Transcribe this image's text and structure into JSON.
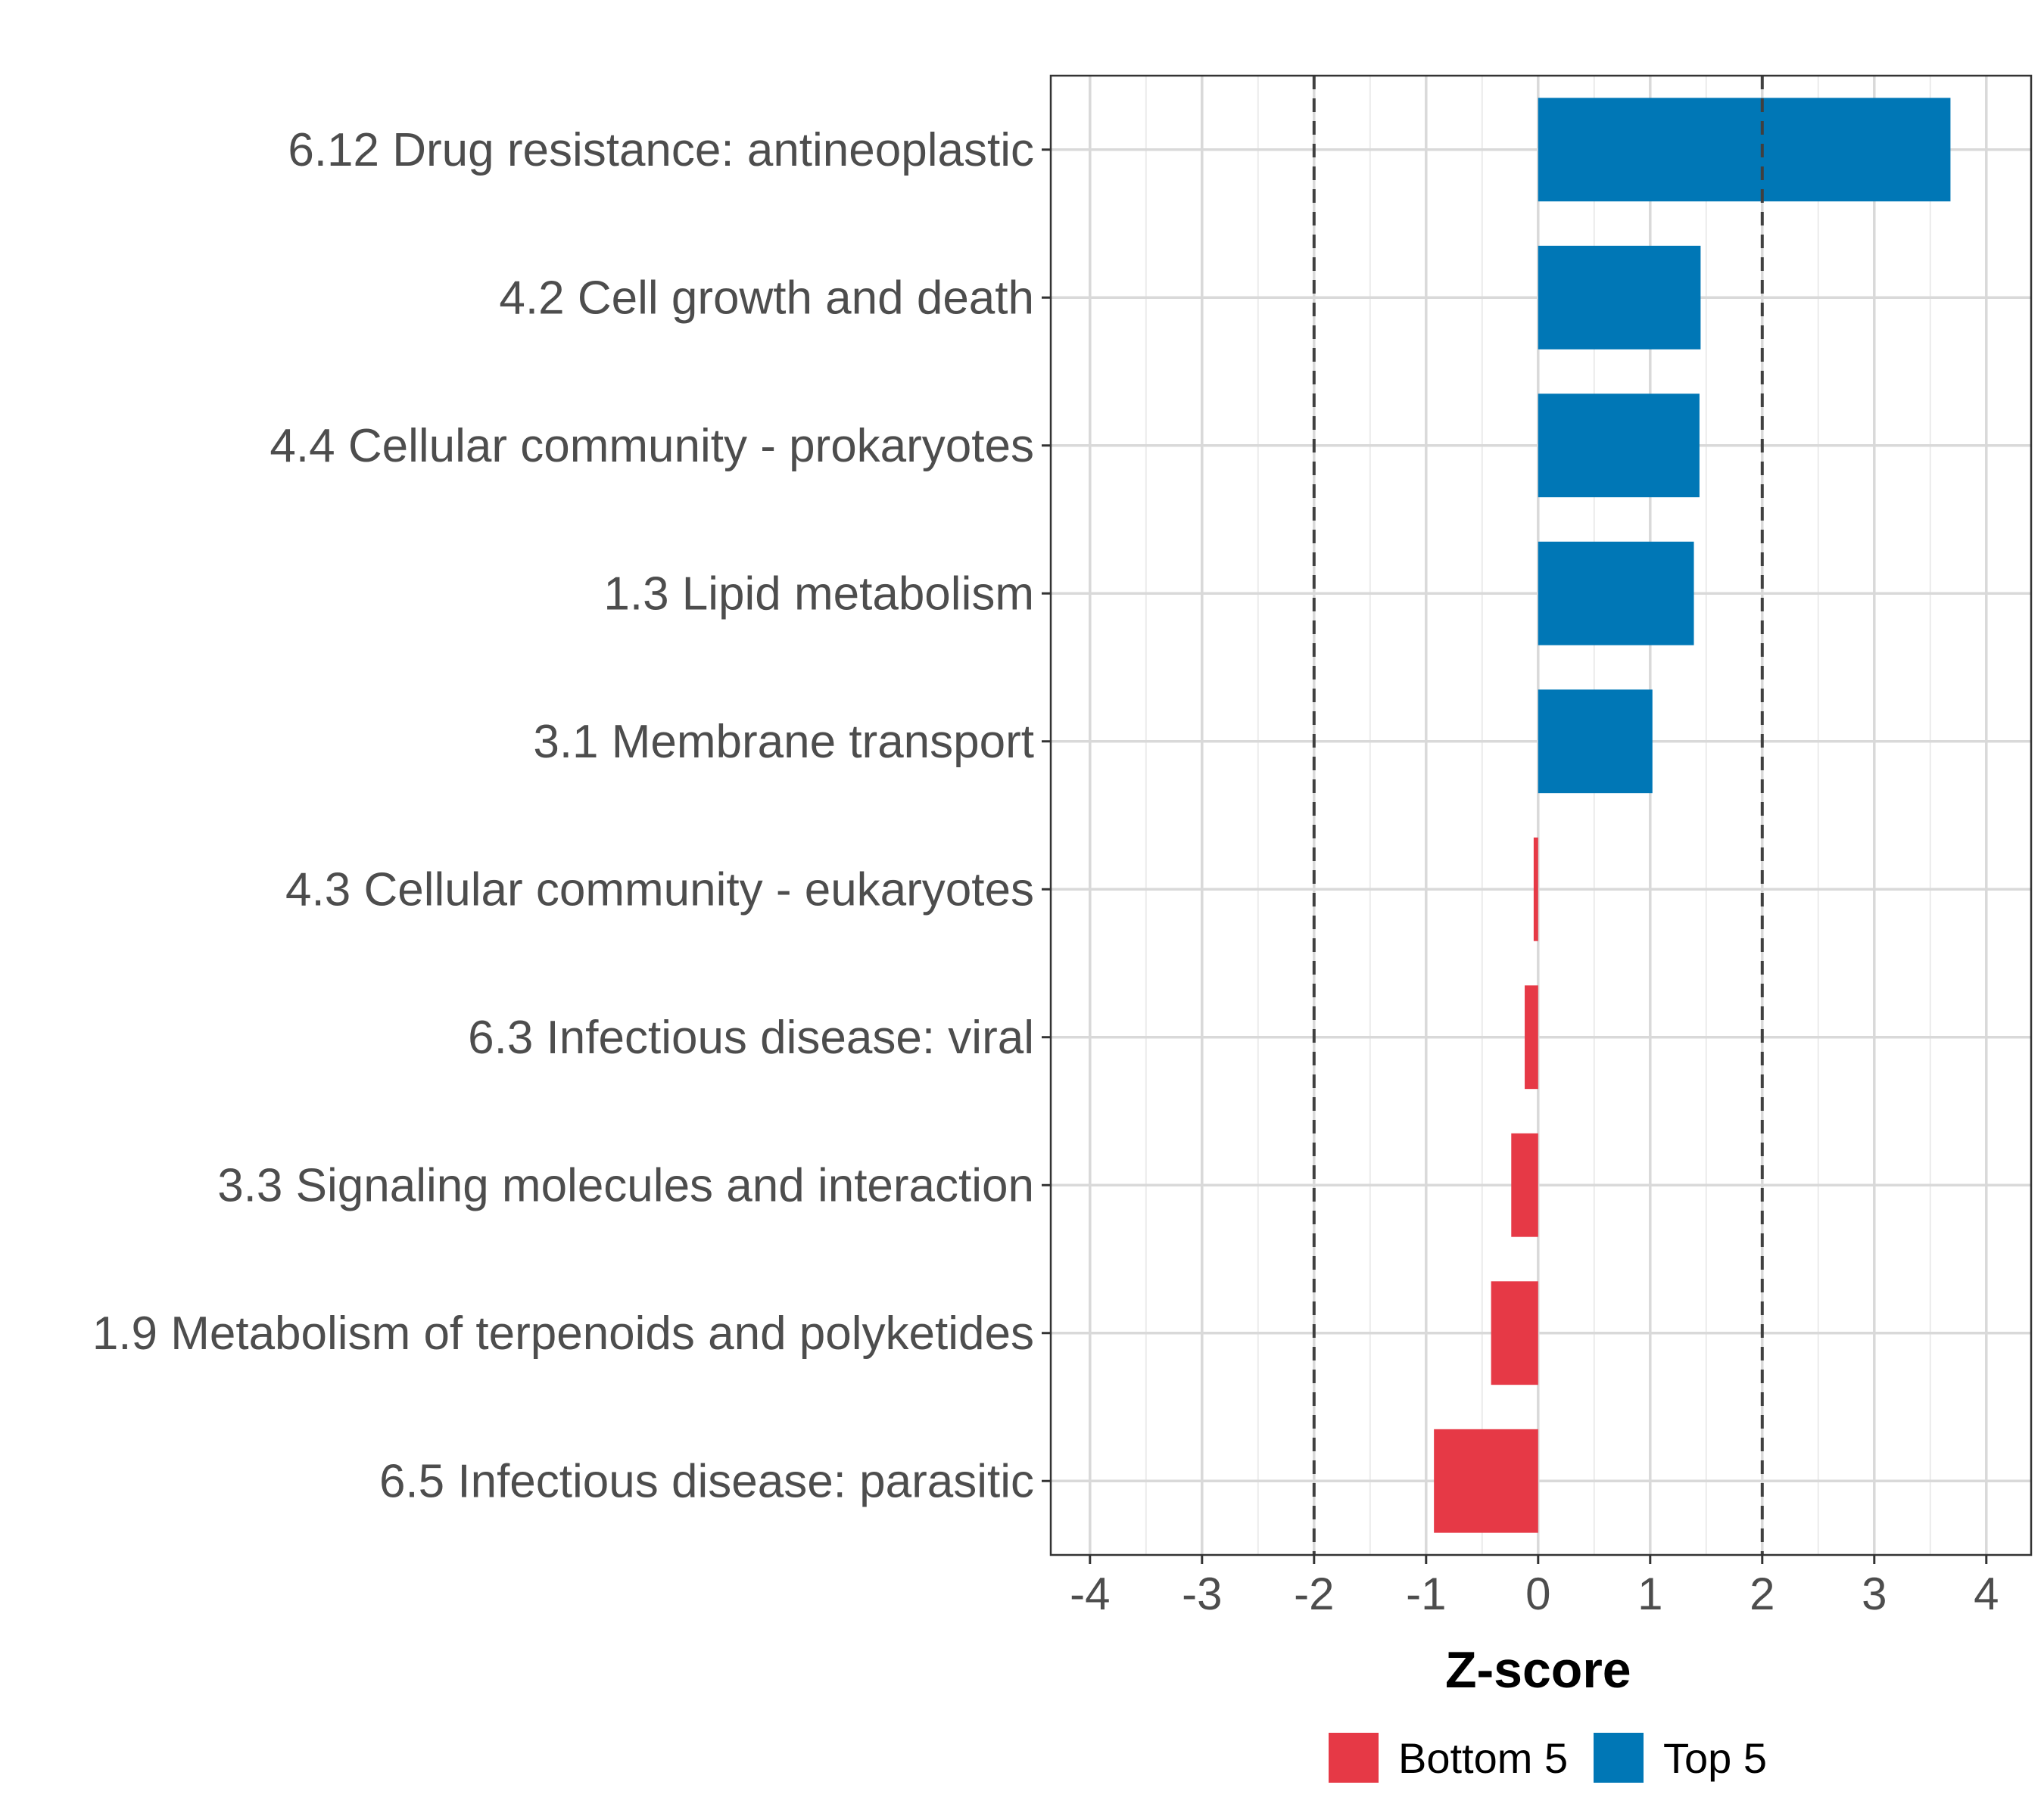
{
  "chart_data": {
    "type": "bar",
    "orientation": "horizontal",
    "title": "",
    "xlabel": "Z-score",
    "ylabel": "",
    "xlim": [
      -4.35,
      4.4
    ],
    "xticks": [
      -4,
      -3,
      -2,
      -1,
      0,
      1,
      2,
      3,
      4
    ],
    "xtick_labels": [
      "-4",
      "-3",
      "-2",
      "-1",
      "0",
      "1",
      "2",
      "3",
      "4"
    ],
    "reference_lines": [
      -2,
      2
    ],
    "grid": true,
    "categories": [
      "6.12 Drug resistance: antineoplastic",
      "4.2 Cell growth and death",
      "4.4 Cellular community - prokaryotes",
      "1.3 Lipid metabolism",
      "3.1 Membrane transport",
      "4.3 Cellular community - eukaryotes",
      "6.3 Infectious disease: viral",
      "3.3 Signaling molecules and interaction",
      "1.9 Metabolism of terpenoids and polyketides",
      "6.5 Infectious disease: parasitic"
    ],
    "values": [
      3.68,
      1.45,
      1.44,
      1.39,
      1.02,
      -0.04,
      -0.12,
      -0.24,
      -0.42,
      -0.93
    ],
    "groups": [
      "Top 5",
      "Top 5",
      "Top 5",
      "Top 5",
      "Top 5",
      "Bottom 5",
      "Bottom 5",
      "Bottom 5",
      "Bottom 5",
      "Bottom 5"
    ],
    "legend": {
      "position": "bottom",
      "entries": [
        {
          "label": "Bottom 5",
          "color": "#e63946"
        },
        {
          "label": "Top 5",
          "color": "#0077b6"
        }
      ]
    }
  }
}
